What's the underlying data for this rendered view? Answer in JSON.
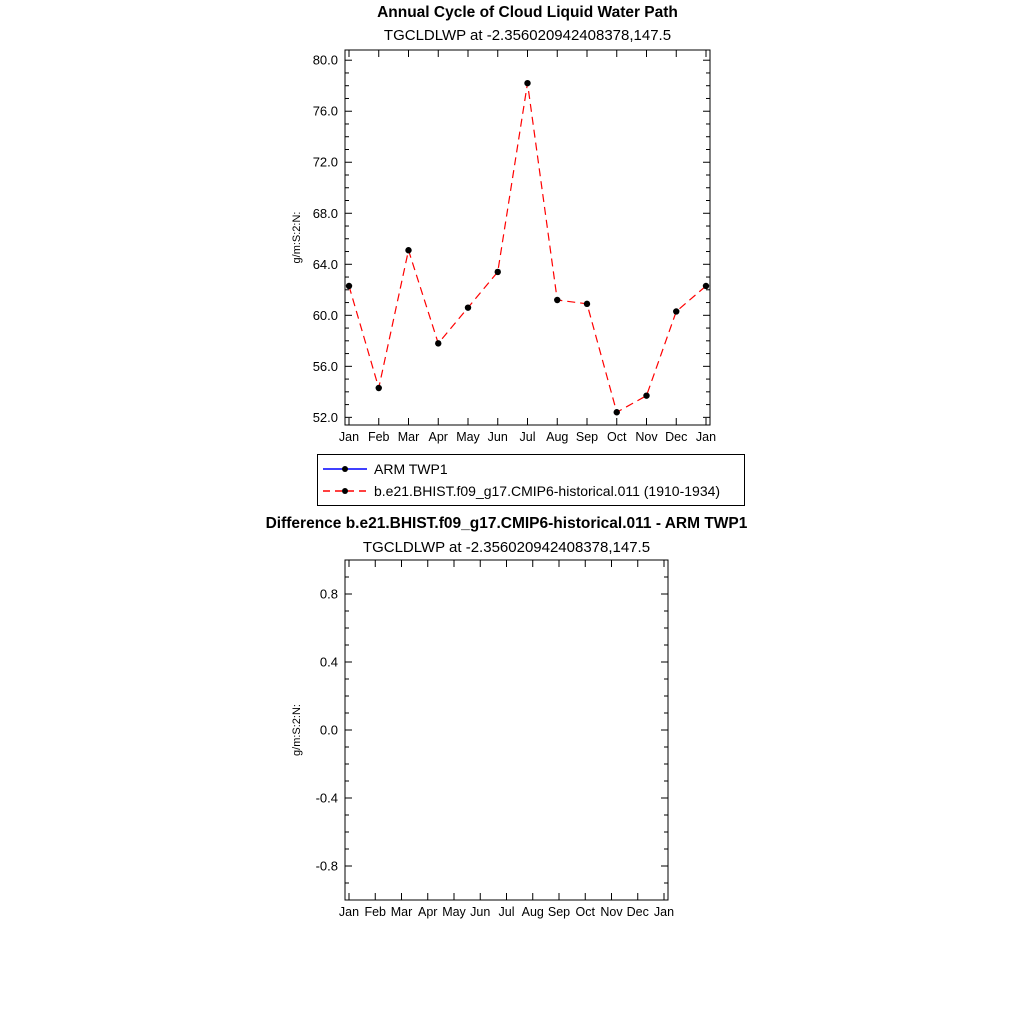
{
  "page": {
    "background_color": "#ffffff"
  },
  "top_chart": {
    "title": "Annual Cycle of Cloud Liquid Water Path",
    "subtitle": "TGCLDLWP at -2.356020942408378,147.5",
    "y_axis_label": "g/m:S:2:N:",
    "legend": {
      "entries": [
        {
          "label": "ARM TWP1",
          "line_color": "#0000ff",
          "line_style": "solid",
          "marker_color": "#000000"
        },
        {
          "label": "b.e21.BHIST.f09_g17.CMIP6-historical.011 (1910-1934)",
          "line_color": "#ff0000",
          "line_style": "dashed",
          "marker_color": "#000000"
        }
      ]
    }
  },
  "bottom_chart": {
    "title": "Difference b.e21.BHIST.f09_g17.CMIP6-historical.011 - ARM TWP1",
    "subtitle": "TGCLDLWP at -2.356020942408378,147.5",
    "y_axis_label": "g/m:S:2:N:"
  },
  "chart_data": [
    {
      "type": "line",
      "title": "Annual Cycle of Cloud Liquid Water Path",
      "subtitle": "TGCLDLWP at -2.356020942408378,147.5",
      "xlabel": "",
      "ylabel": "g/m:S:2:N:",
      "categories": [
        "Jan",
        "Feb",
        "Mar",
        "Apr",
        "May",
        "Jun",
        "Jul",
        "Aug",
        "Sep",
        "Oct",
        "Nov",
        "Dec",
        "Jan"
      ],
      "ylim": [
        51.4,
        80.8
      ],
      "yticks": [
        52.0,
        56.0,
        60.0,
        64.0,
        68.0,
        72.0,
        76.0,
        80.0
      ],
      "y_minor_step": 1.0,
      "grid": false,
      "legend_position": "below",
      "series": [
        {
          "name": "ARM TWP1",
          "color": "#0000ff",
          "line_style": "solid",
          "marker": "dot",
          "marker_color": "#000000",
          "values": []
        },
        {
          "name": "b.e21.BHIST.f09_g17.CMIP6-historical.011 (1910-1934)",
          "color": "#ff0000",
          "line_style": "dashed",
          "marker": "dot",
          "marker_color": "#000000",
          "values": [
            62.3,
            54.3,
            65.1,
            57.8,
            60.6,
            63.4,
            78.2,
            61.2,
            60.9,
            52.4,
            53.7,
            60.3,
            62.3
          ]
        }
      ]
    },
    {
      "type": "line",
      "title": "Difference b.e21.BHIST.f09_g17.CMIP6-historical.011 - ARM TWP1",
      "subtitle": "TGCLDLWP at -2.356020942408378,147.5",
      "xlabel": "",
      "ylabel": "g/m:S:2:N:",
      "categories": [
        "Jan",
        "Feb",
        "Mar",
        "Apr",
        "May",
        "Jun",
        "Jul",
        "Aug",
        "Sep",
        "Oct",
        "Nov",
        "Dec",
        "Jan"
      ],
      "ylim": [
        -1.0,
        1.0
      ],
      "yticks": [
        -0.8,
        -0.4,
        0.0,
        0.4,
        0.8
      ],
      "y_minor_step": 0.1,
      "grid": false,
      "series": []
    }
  ]
}
